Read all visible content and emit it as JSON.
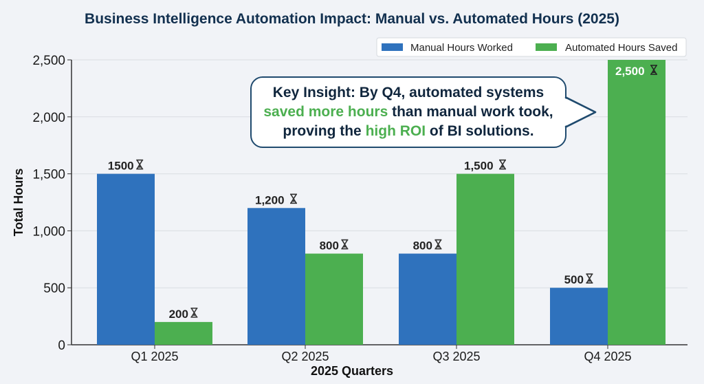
{
  "chart_data": {
    "type": "bar",
    "title": "Business Intelligence Automation Impact: Manual vs. Automated Hours (2025)",
    "xlabel": "2025 Quarters",
    "ylabel": "Total Hours",
    "ylim": [
      0,
      2500
    ],
    "yticks": [
      0,
      500,
      1000,
      1500,
      2000,
      2500
    ],
    "ytick_labels": [
      "0",
      "500",
      "1,000",
      "1,500",
      "2,000",
      "2,500"
    ],
    "grid": "horizontal",
    "legend_position": "top-right",
    "categories": [
      "Q1 2025",
      "Q2 2025",
      "Q3 2025",
      "Q4 2025"
    ],
    "series": [
      {
        "name": "Manual Hours Worked",
        "color": "#2f72bd",
        "values": [
          1500,
          1200,
          800,
          500
        ],
        "labels": [
          "1500",
          "1,200",
          "800",
          "500"
        ]
      },
      {
        "name": "Automated Hours Saved",
        "color": "#4caf50",
        "values": [
          200,
          800,
          1500,
          2500
        ],
        "labels": [
          "200",
          "800",
          "1,500",
          "2,500"
        ]
      }
    ],
    "label_icon": "hourglass-icon",
    "annotation": {
      "line1": "Key Insight: By Q4, automated systems",
      "line2_highlight": "saved more hours",
      "line2_rest": " than manual work took,",
      "line3_start": "proving the ",
      "line3_highlight": "high ROI",
      "line3_rest": " of BI solutions."
    }
  }
}
